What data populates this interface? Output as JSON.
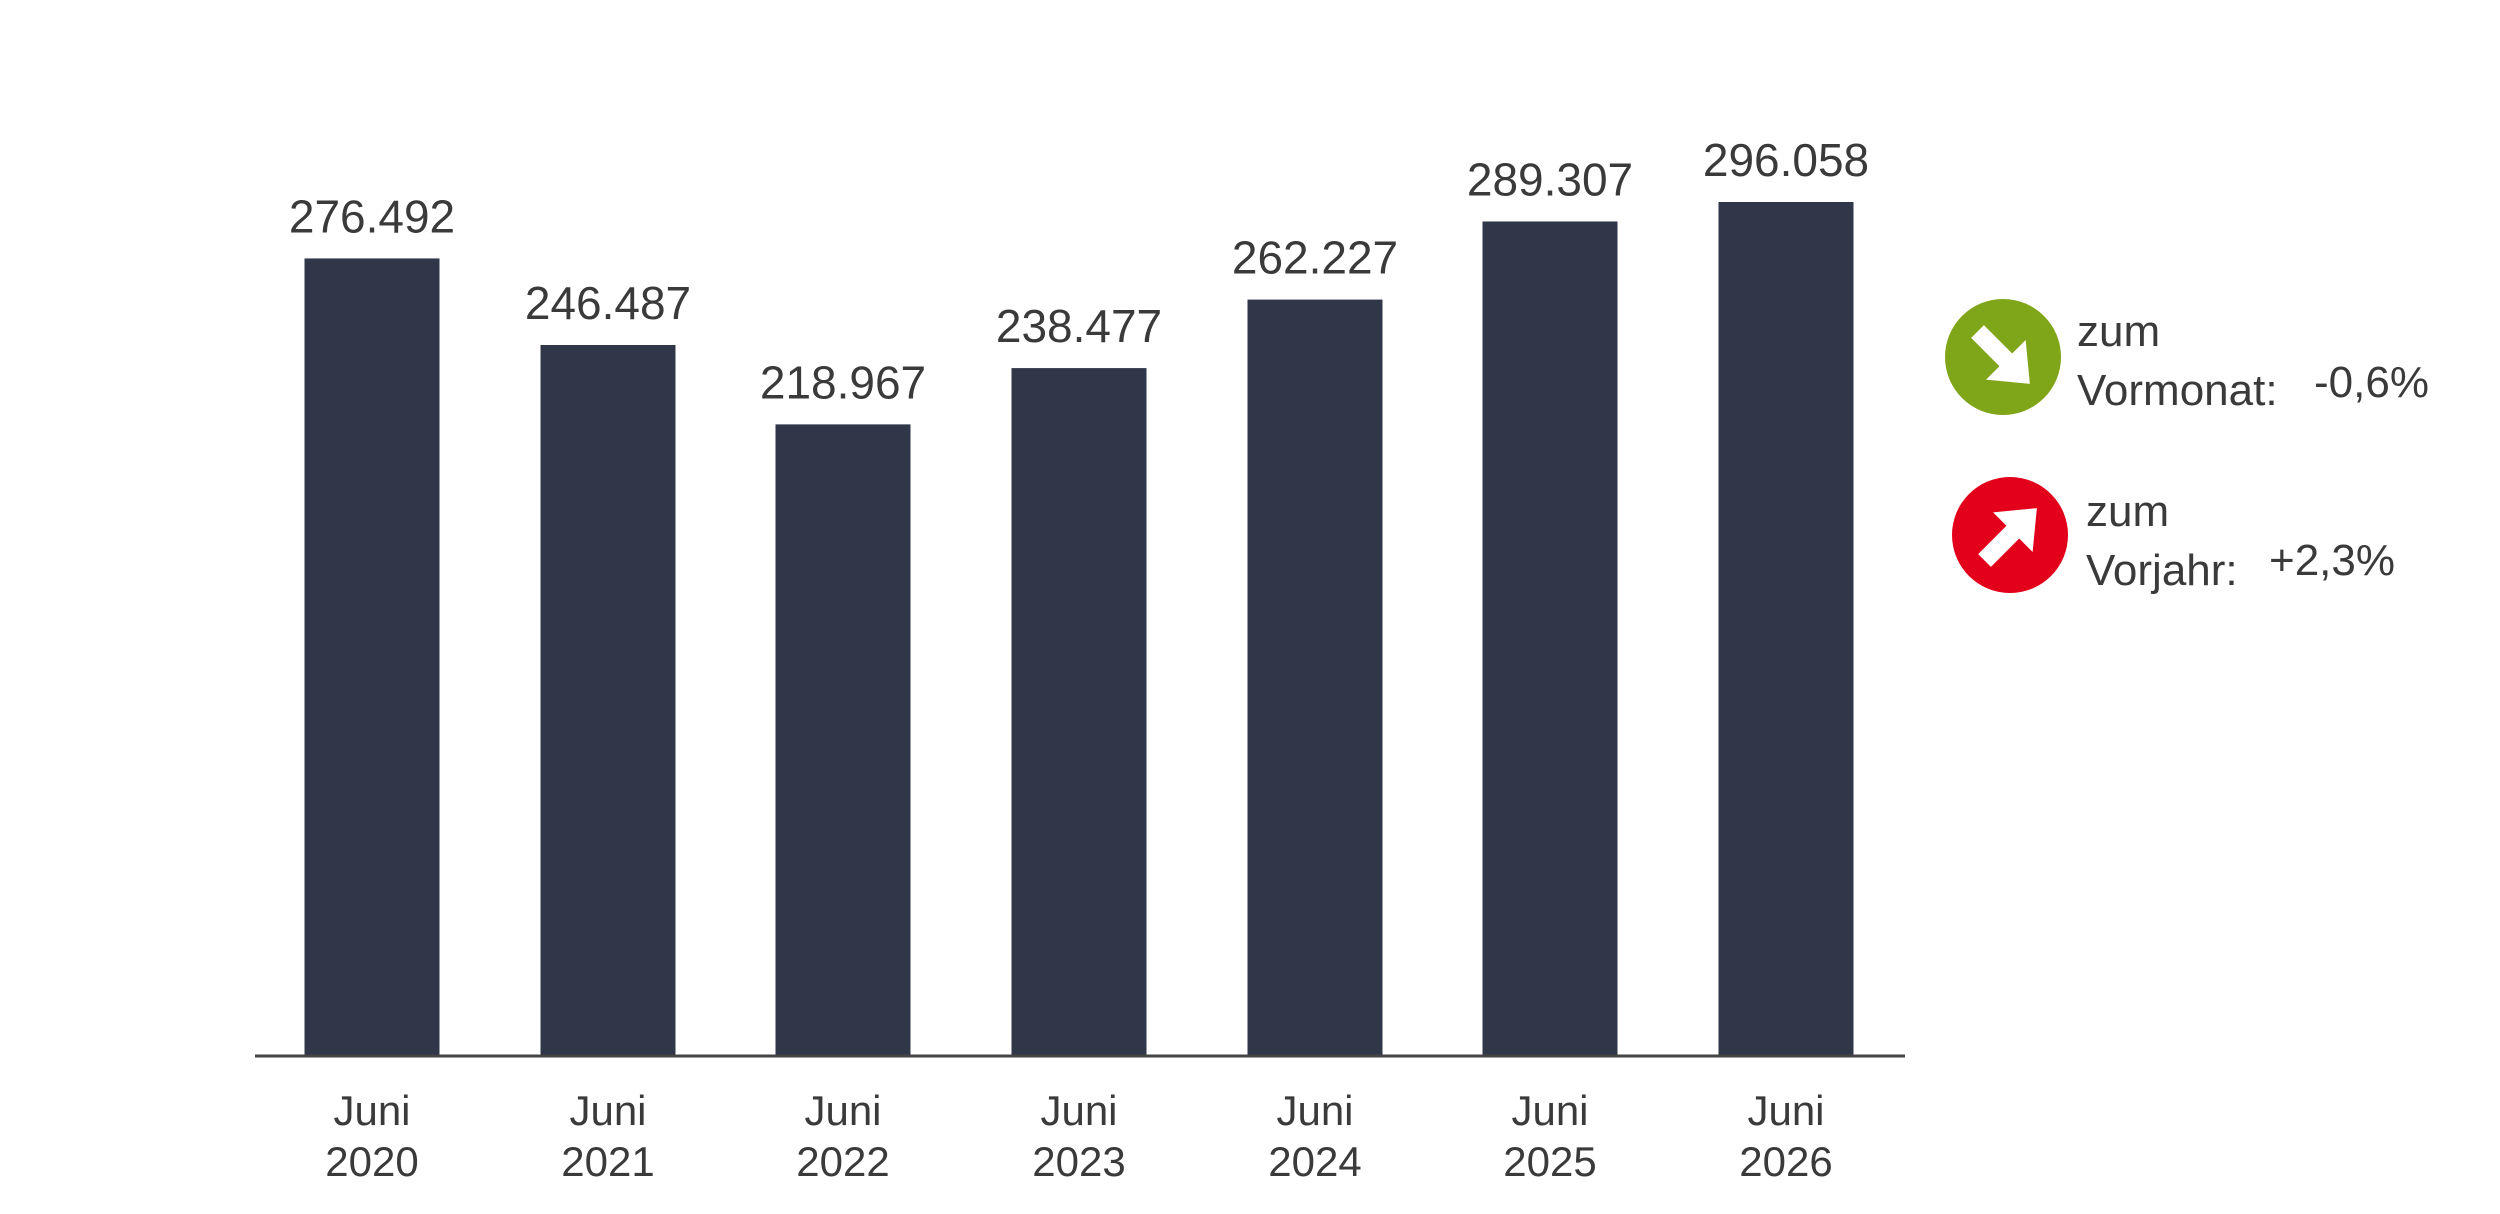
{
  "chart_data": {
    "type": "bar",
    "categories": [
      {
        "line1": "Juni",
        "line2": "2020"
      },
      {
        "line1": "Juni",
        "line2": "2021"
      },
      {
        "line1": "Juni",
        "line2": "2022"
      },
      {
        "line1": "Juni",
        "line2": "2023"
      },
      {
        "line1": "Juni",
        "line2": "2024"
      },
      {
        "line1": "Juni",
        "line2": "2025"
      },
      {
        "line1": "Juni",
        "line2": "2026"
      }
    ],
    "values": [
      276492,
      246487,
      218967,
      238477,
      262227,
      289307,
      296058
    ],
    "data_labels": [
      "276.492",
      "246.487",
      "218.967",
      "238.477",
      "262.227",
      "289.307",
      "296.058"
    ],
    "ylim": [
      0,
      296058
    ],
    "grid": false,
    "bar_color": "#2f3749"
  },
  "indicators": [
    {
      "id": "vormonat",
      "line1": "zum",
      "line2": "Vormonat:",
      "value": "-0,6%",
      "icon": "arrow-down-right-icon",
      "color": "#7fa519"
    },
    {
      "id": "vorjahr",
      "line1": "zum",
      "line2": "Vorjahr:",
      "value": "+2,3%",
      "icon": "arrow-up-right-icon",
      "color": "#e2001a"
    }
  ]
}
